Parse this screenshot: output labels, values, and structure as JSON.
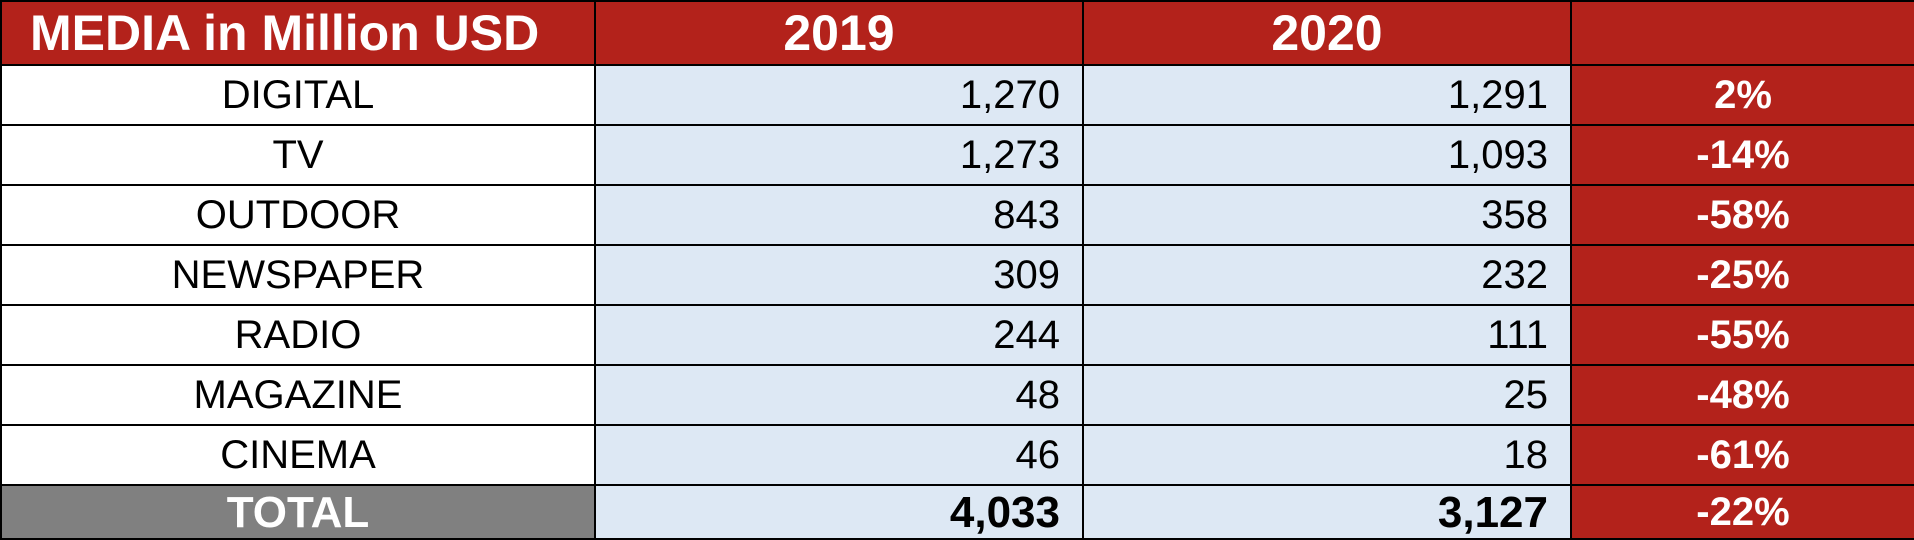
{
  "chart_data": {
    "type": "table",
    "columns": [
      "MEDIA in Million USD",
      "2019",
      "2020",
      ""
    ],
    "rows": [
      {
        "media": "DIGITAL",
        "y2019": "1,270",
        "y2020": "1,291",
        "change": "2%"
      },
      {
        "media": "TV",
        "y2019": "1,273",
        "y2020": "1,093",
        "change": "-14%"
      },
      {
        "media": "OUTDOOR",
        "y2019": "843",
        "y2020": "358",
        "change": "-58%"
      },
      {
        "media": "NEWSPAPER",
        "y2019": "309",
        "y2020": "232",
        "change": "-25%"
      },
      {
        "media": "RADIO",
        "y2019": "244",
        "y2020": "111",
        "change": "-55%"
      },
      {
        "media": "MAGAZINE",
        "y2019": "48",
        "y2020": "25",
        "change": "-48%"
      },
      {
        "media": "CINEMA",
        "y2019": "46",
        "y2020": "18",
        "change": "-61%"
      }
    ],
    "total": {
      "media": "TOTAL",
      "y2019": "4,033",
      "y2020": "3,127",
      "change": "-22%"
    }
  },
  "colors": {
    "header_red": "#b3221b",
    "value_blue": "#dde8f4",
    "total_gray": "#808080",
    "border": "#000000"
  }
}
